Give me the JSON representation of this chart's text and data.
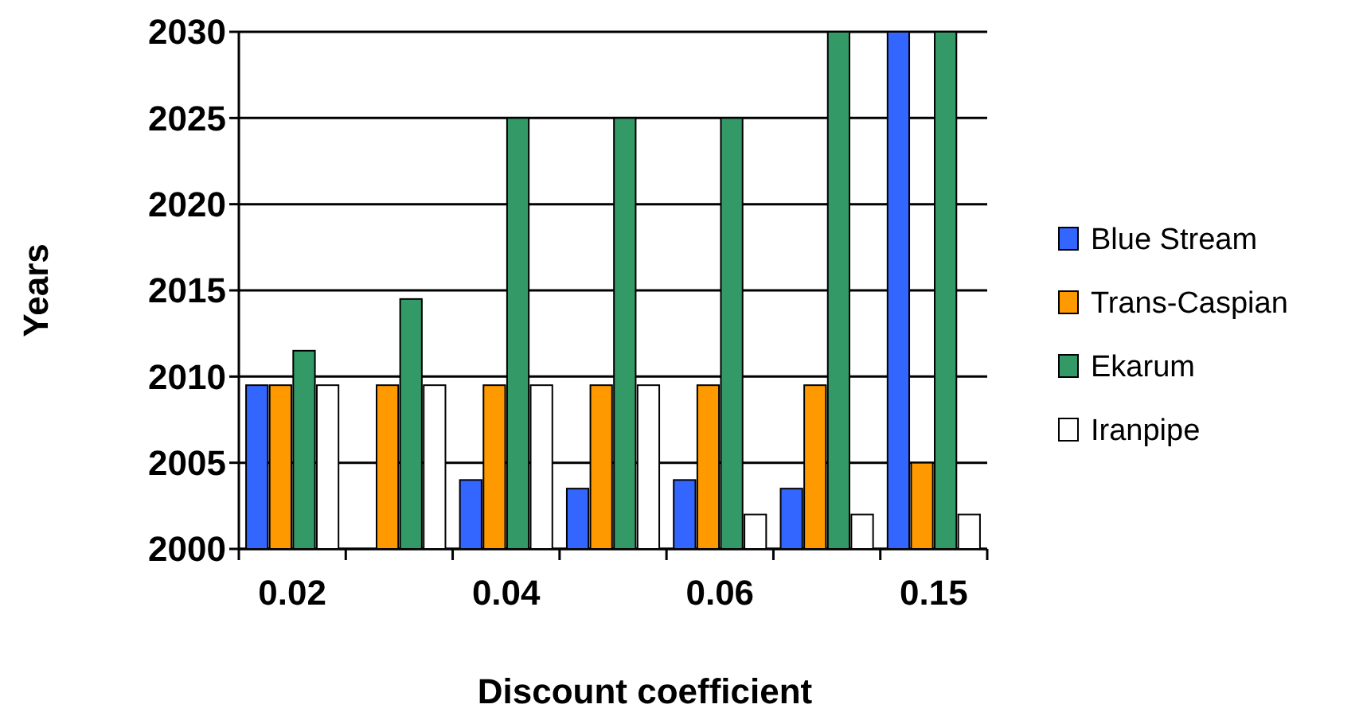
{
  "chart_data": {
    "type": "bar",
    "xlabel": "Discount coefficient",
    "ylabel": "Years",
    "categories": [
      "0.02",
      null,
      "0.04",
      null,
      "0.06",
      null,
      "0.15"
    ],
    "series": [
      {
        "name": "Blue Stream",
        "color": "#3366ff",
        "values": [
          2009.5,
          null,
          2004,
          2003.5,
          2004,
          2003.5,
          2030
        ]
      },
      {
        "name": "Trans-Caspian",
        "color": "#ff9900",
        "values": [
          2009.5,
          2009.5,
          2009.5,
          2009.5,
          2009.5,
          2009.5,
          2005
        ]
      },
      {
        "name": "Ekarum",
        "color": "#339966",
        "values": [
          2011.5,
          2014.5,
          2025,
          2025,
          2025,
          2030,
          2030
        ]
      },
      {
        "name": "Iranpipe",
        "color": "#ffffff",
        "values": [
          2009.5,
          2009.5,
          2009.5,
          2009.5,
          2002,
          2002,
          2002
        ]
      }
    ],
    "ylim": [
      2000,
      2030
    ],
    "yticks": [
      2000,
      2005,
      2010,
      2015,
      2020,
      2025,
      2030
    ],
    "grid": "y",
    "legend": "right"
  }
}
